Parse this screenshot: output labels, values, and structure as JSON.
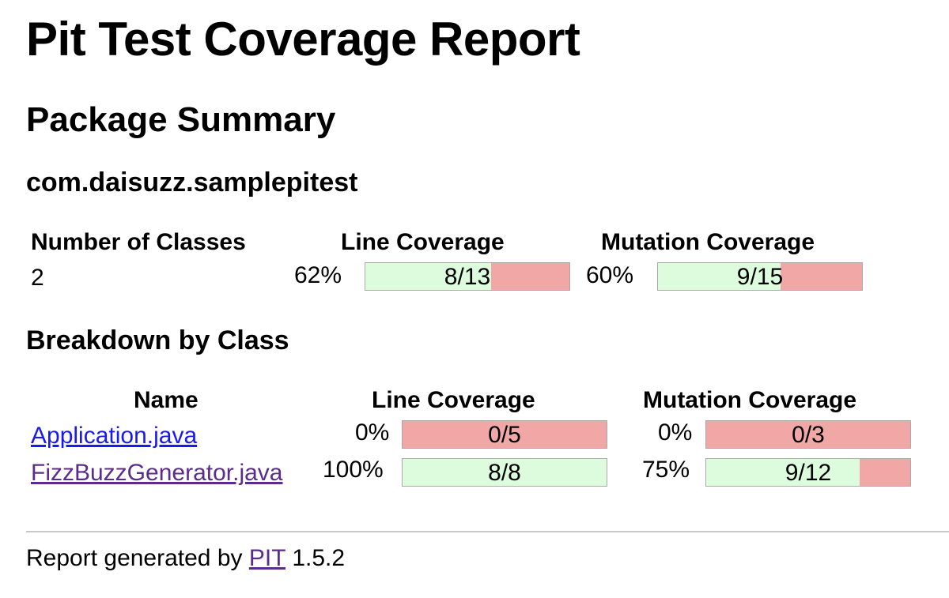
{
  "page": {
    "title": "Pit Test Coverage Report",
    "section_package_summary": "Package Summary",
    "package_name": "com.daisuzz.samplepitest",
    "section_breakdown": "Breakdown by Class"
  },
  "summary": {
    "headers": {
      "classes": "Number of Classes",
      "line_coverage": "Line Coverage",
      "mutation_coverage": "Mutation Coverage"
    },
    "classes_count": "2",
    "line": {
      "percent": "62%",
      "ratio": "8/13",
      "covered": 8,
      "total": 13
    },
    "mutation": {
      "percent": "60%",
      "ratio": "9/15",
      "covered": 9,
      "total": 15
    }
  },
  "breakdown": {
    "headers": {
      "name": "Name",
      "line_coverage": "Line Coverage",
      "mutation_coverage": "Mutation Coverage"
    },
    "rows": [
      {
        "name": "Application.java",
        "line": {
          "percent": "0%",
          "ratio": "0/5",
          "covered": 0,
          "total": 5
        },
        "mutation": {
          "percent": "0%",
          "ratio": "0/3",
          "covered": 0,
          "total": 3
        }
      },
      {
        "name": "FizzBuzzGenerator.java",
        "line": {
          "percent": "100%",
          "ratio": "8/8",
          "covered": 8,
          "total": 8
        },
        "mutation": {
          "percent": "75%",
          "ratio": "9/12",
          "covered": 9,
          "total": 12
        }
      }
    ]
  },
  "footer": {
    "prefix": "Report generated by",
    "link": "PIT",
    "version": "1.5.2"
  },
  "colors": {
    "covered": "#ddfbdd",
    "uncovered": "#f2a7a7",
    "link": "#1a1aee",
    "visited_link": "#5b2b8e"
  }
}
